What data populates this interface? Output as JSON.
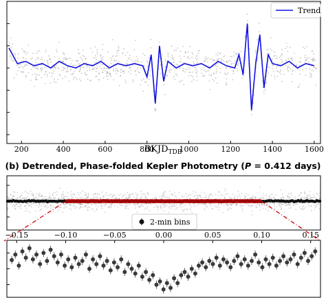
{
  "chart_data": [
    {
      "type": "scatter",
      "panel": "top",
      "xlabel_main": "BKJD",
      "xlabel_sub": "TDB",
      "xlim": [
        130,
        1630
      ],
      "ylim": [
        -3.4,
        3.0
      ],
      "xticks": [
        200,
        400,
        600,
        800,
        1000,
        1200,
        1400,
        1600
      ],
      "legend": "Trend",
      "legend_placement": "top-right",
      "colors": {
        "data": "#9a9a9a",
        "trend": "#1010e0"
      },
      "series": [
        {
          "name": "Trend",
          "x": [
            140,
            180,
            220,
            260,
            300,
            340,
            380,
            420,
            460,
            500,
            540,
            580,
            620,
            660,
            700,
            740,
            780,
            800,
            820,
            840,
            860,
            880,
            900,
            940,
            980,
            1020,
            1060,
            1100,
            1140,
            1180,
            1220,
            1240,
            1260,
            1280,
            1300,
            1320,
            1340,
            1360,
            1380,
            1400,
            1440,
            1480,
            1520,
            1560,
            1600
          ],
          "y": [
            0.9,
            0.2,
            0.3,
            0.1,
            0.2,
            0.0,
            0.3,
            0.1,
            0.0,
            0.2,
            0.1,
            0.3,
            0.0,
            0.2,
            0.1,
            0.2,
            0.1,
            -0.4,
            0.6,
            -1.6,
            1.0,
            -0.6,
            0.3,
            0.0,
            0.2,
            0.1,
            0.2,
            0.0,
            0.3,
            0.1,
            0.0,
            0.6,
            -0.3,
            2.0,
            -1.9,
            0.2,
            1.5,
            -0.9,
            0.6,
            0.2,
            0.1,
            0.3,
            0.0,
            0.2,
            0.1
          ]
        }
      ]
    },
    {
      "type": "scatter",
      "panel": "middle",
      "title_label": "(b) Detrended, Phase-folded Kepler Photometry (",
      "title_var": "P",
      "title_value": " = 0.412 days)",
      "xlim": [
        -0.16,
        0.16
      ],
      "legend_placement": "bottom-center",
      "colors": {
        "data": "#8a8a8a",
        "bins": "#111111",
        "fit": "#cc0000"
      }
    },
    {
      "type": "scatter",
      "panel": "bottom",
      "xlim": [
        -0.16,
        0.16
      ],
      "xticks": [
        -0.15,
        -0.1,
        -0.05,
        0.0,
        0.05,
        0.1,
        0.15
      ],
      "xticklabels": [
        "−0.15",
        "−0.10",
        "−0.05",
        "0.00",
        "0.05",
        "0.10",
        "0.15"
      ],
      "legend": "2-min bins",
      "series": [
        {
          "name": "2-min bins",
          "x": [
            -0.155,
            -0.1514,
            -0.1478,
            -0.1442,
            -0.1406,
            -0.137,
            -0.1334,
            -0.1298,
            -0.1262,
            -0.1226,
            -0.119,
            -0.1154,
            -0.1118,
            -0.1082,
            -0.1046,
            -0.101,
            -0.0974,
            -0.0938,
            -0.0902,
            -0.0866,
            -0.083,
            -0.0794,
            -0.0758,
            -0.0722,
            -0.0686,
            -0.065,
            -0.0614,
            -0.0578,
            -0.0542,
            -0.0506,
            -0.047,
            -0.0434,
            -0.0398,
            -0.0362,
            -0.0326,
            -0.029,
            -0.0254,
            -0.0218,
            -0.0182,
            -0.0146,
            -0.011,
            -0.0074,
            -0.0038,
            -0.0002,
            0.0034,
            0.007,
            0.0106,
            0.0142,
            0.0178,
            0.0214,
            0.025,
            0.0286,
            0.0322,
            0.0358,
            0.0394,
            0.043,
            0.0466,
            0.0502,
            0.0538,
            0.0574,
            0.061,
            0.0646,
            0.0682,
            0.0718,
            0.0754,
            0.079,
            0.0826,
            0.0862,
            0.0898,
            0.0934,
            0.097,
            0.1006,
            0.1042,
            0.1078,
            0.1114,
            0.115,
            0.1186,
            0.1222,
            0.1258,
            0.1294,
            0.133,
            0.1366,
            0.1402,
            0.1438,
            0.1474,
            0.151,
            0.1546
          ],
          "y": [
            0.55,
            0.9,
            0.2,
            1.1,
            0.7,
            1.3,
            0.6,
            0.9,
            0.3,
            1.0,
            0.5,
            1.2,
            0.8,
            0.4,
            0.9,
            0.2,
            0.6,
            0.1,
            0.7,
            0.3,
            0.5,
            0.9,
            0.0,
            0.6,
            0.3,
            0.8,
            0.2,
            0.5,
            -0.1,
            0.4,
            0.1,
            0.6,
            -0.2,
            0.3,
            0.0,
            -0.3,
            0.2,
            -0.5,
            -0.2,
            -0.7,
            -0.4,
            -1.0,
            -0.8,
            -1.3,
            -0.9,
            -1.2,
            -0.6,
            -0.9,
            -0.4,
            -0.2,
            -0.5,
            0.0,
            -0.3,
            0.2,
            0.4,
            0.1,
            0.5,
            0.3,
            0.7,
            0.2,
            0.6,
            0.4,
            0.1,
            0.5,
            0.8,
            0.3,
            0.6,
            0.2,
            0.5,
            0.9,
            0.4,
            0.1,
            0.6,
            0.3,
            0.7,
            0.2,
            0.5,
            0.8,
            0.4,
            0.6,
            0.9,
            0.3,
            0.7,
            1.0,
            0.5,
            0.8,
            1.1
          ],
          "ylim": [
            -1.8,
            1.8
          ]
        }
      ]
    }
  ]
}
